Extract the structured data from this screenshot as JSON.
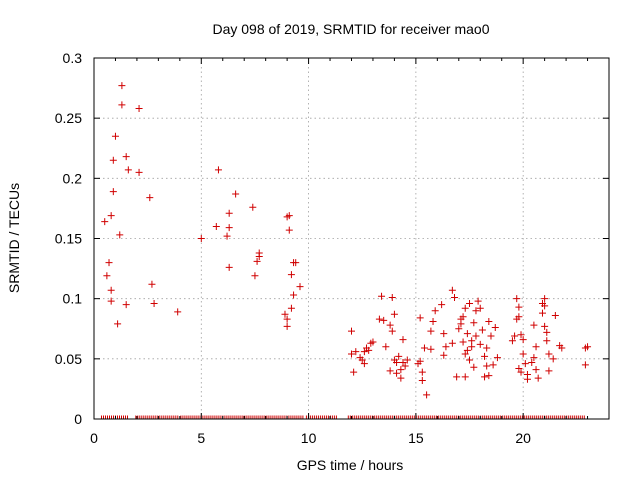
{
  "chart_data": {
    "type": "scatter",
    "title": "Day 098 of 2019, SRMTID for receiver mao0",
    "xlabel": "GPS time / hours",
    "ylabel": "SRMTID / TECUs",
    "xlim": [
      0,
      24.0
    ],
    "ylim": [
      0,
      0.3
    ],
    "xticks": [
      0,
      5,
      10,
      15,
      20
    ],
    "yticks": [
      0,
      0.05,
      0.1,
      0.15,
      0.2,
      0.25,
      0.3
    ],
    "xtick_labels": [
      "0",
      "5",
      "10",
      "15",
      "20"
    ],
    "ytick_labels": [
      "0",
      "0.05",
      "0.1",
      "0.15",
      "0.2",
      "0.25",
      "0.3"
    ],
    "grid": true,
    "marker": "+",
    "color": "#d00000",
    "series": [
      {
        "name": "SRMTID",
        "points": [
          [
            0.5,
            0.164
          ],
          [
            0.6,
            0.119
          ],
          [
            0.7,
            0.13
          ],
          [
            0.8,
            0.107
          ],
          [
            0.8,
            0.098
          ],
          [
            0.8,
            0.169
          ],
          [
            0.9,
            0.215
          ],
          [
            0.9,
            0.189
          ],
          [
            1.0,
            0.235
          ],
          [
            1.1,
            0.079
          ],
          [
            1.2,
            0.153
          ],
          [
            1.3,
            0.277
          ],
          [
            1.3,
            0.261
          ],
          [
            1.5,
            0.218
          ],
          [
            1.5,
            0.095
          ],
          [
            1.6,
            0.207
          ],
          [
            2.1,
            0.258
          ],
          [
            2.1,
            0.205
          ],
          [
            2.6,
            0.184
          ],
          [
            2.7,
            0.112
          ],
          [
            2.8,
            0.096
          ],
          [
            3.9,
            0.089
          ],
          [
            5.0,
            0.15
          ],
          [
            5.7,
            0.16
          ],
          [
            5.8,
            0.207
          ],
          [
            6.2,
            0.152
          ],
          [
            6.3,
            0.171
          ],
          [
            6.3,
            0.159
          ],
          [
            6.3,
            0.126
          ],
          [
            6.6,
            0.187
          ],
          [
            7.4,
            0.176
          ],
          [
            7.5,
            0.119
          ],
          [
            7.6,
            0.131
          ],
          [
            7.7,
            0.138
          ],
          [
            7.7,
            0.135
          ],
          [
            8.9,
            0.087
          ],
          [
            9.0,
            0.077
          ],
          [
            9.0,
            0.168
          ],
          [
            9.0,
            0.083
          ],
          [
            9.1,
            0.169
          ],
          [
            9.1,
            0.157
          ],
          [
            9.2,
            0.12
          ],
          [
            9.2,
            0.092
          ],
          [
            9.3,
            0.103
          ],
          [
            9.3,
            0.13
          ],
          [
            9.4,
            0.13
          ],
          [
            9.6,
            0.11
          ],
          [
            12.0,
            0.073
          ],
          [
            12.0,
            0.054
          ],
          [
            12.1,
            0.039
          ],
          [
            12.2,
            0.056
          ],
          [
            12.4,
            0.051
          ],
          [
            12.5,
            0.049
          ],
          [
            12.6,
            0.046
          ],
          [
            12.6,
            0.056
          ],
          [
            12.7,
            0.059
          ],
          [
            12.8,
            0.057
          ],
          [
            12.9,
            0.063
          ],
          [
            13.0,
            0.064
          ],
          [
            13.3,
            0.083
          ],
          [
            13.4,
            0.102
          ],
          [
            13.5,
            0.082
          ],
          [
            13.6,
            0.06
          ],
          [
            13.8,
            0.04
          ],
          [
            13.8,
            0.078
          ],
          [
            13.9,
            0.073
          ],
          [
            13.9,
            0.101
          ],
          [
            14.0,
            0.049
          ],
          [
            14.0,
            0.087
          ],
          [
            14.1,
            0.038
          ],
          [
            14.1,
            0.047
          ],
          [
            14.2,
            0.052
          ],
          [
            14.3,
            0.041
          ],
          [
            14.3,
            0.034
          ],
          [
            14.4,
            0.047
          ],
          [
            14.4,
            0.066
          ],
          [
            14.5,
            0.044
          ],
          [
            14.6,
            0.049
          ],
          [
            15.1,
            0.046
          ],
          [
            15.2,
            0.048
          ],
          [
            15.2,
            0.084
          ],
          [
            15.3,
            0.039
          ],
          [
            15.3,
            0.032
          ],
          [
            15.4,
            0.059
          ],
          [
            15.5,
            0.02
          ],
          [
            15.7,
            0.073
          ],
          [
            15.7,
            0.058
          ],
          [
            15.8,
            0.081
          ],
          [
            15.9,
            0.09
          ],
          [
            16.2,
            0.095
          ],
          [
            16.3,
            0.071
          ],
          [
            16.3,
            0.053
          ],
          [
            16.4,
            0.06
          ],
          [
            16.7,
            0.107
          ],
          [
            16.7,
            0.063
          ],
          [
            16.8,
            0.101
          ],
          [
            16.9,
            0.035
          ],
          [
            17.0,
            0.075
          ],
          [
            17.1,
            0.083
          ],
          [
            17.1,
            0.079
          ],
          [
            17.2,
            0.085
          ],
          [
            17.2,
            0.064
          ],
          [
            17.3,
            0.035
          ],
          [
            17.3,
            0.092
          ],
          [
            17.3,
            0.054
          ],
          [
            17.4,
            0.071
          ],
          [
            17.4,
            0.057
          ],
          [
            17.5,
            0.049
          ],
          [
            17.5,
            0.096
          ],
          [
            17.6,
            0.065
          ],
          [
            17.6,
            0.06
          ],
          [
            17.7,
            0.043
          ],
          [
            17.7,
            0.08
          ],
          [
            17.8,
            0.069
          ],
          [
            17.8,
            0.09
          ],
          [
            17.9,
            0.098
          ],
          [
            18.0,
            0.062
          ],
          [
            18.0,
            0.092
          ],
          [
            18.1,
            0.074
          ],
          [
            18.2,
            0.052
          ],
          [
            18.2,
            0.035
          ],
          [
            18.3,
            0.059
          ],
          [
            18.3,
            0.044
          ],
          [
            18.4,
            0.081
          ],
          [
            18.4,
            0.036
          ],
          [
            18.5,
            0.069
          ],
          [
            18.6,
            0.045
          ],
          [
            18.7,
            0.076
          ],
          [
            18.8,
            0.051
          ],
          [
            19.5,
            0.065
          ],
          [
            19.6,
            0.069
          ],
          [
            19.7,
            0.083
          ],
          [
            19.7,
            0.1
          ],
          [
            19.8,
            0.042
          ],
          [
            19.8,
            0.093
          ],
          [
            19.8,
            0.085
          ],
          [
            19.9,
            0.039
          ],
          [
            19.9,
            0.07
          ],
          [
            20.0,
            0.066
          ],
          [
            20.0,
            0.054
          ],
          [
            20.1,
            0.046
          ],
          [
            20.2,
            0.033
          ],
          [
            20.2,
            0.037
          ],
          [
            20.4,
            0.047
          ],
          [
            20.5,
            0.078
          ],
          [
            20.5,
            0.051
          ],
          [
            20.6,
            0.041
          ],
          [
            20.6,
            0.06
          ],
          [
            20.7,
            0.034
          ],
          [
            20.9,
            0.096
          ],
          [
            20.9,
            0.088
          ],
          [
            21.0,
            0.094
          ],
          [
            21.0,
            0.1
          ],
          [
            21.0,
            0.077
          ],
          [
            21.1,
            0.072
          ],
          [
            21.1,
            0.065
          ],
          [
            21.2,
            0.054
          ],
          [
            21.2,
            0.04
          ],
          [
            21.4,
            0.05
          ],
          [
            21.5,
            0.086
          ],
          [
            21.7,
            0.061
          ],
          [
            21.8,
            0.059
          ],
          [
            22.9,
            0.045
          ],
          [
            22.9,
            0.059
          ],
          [
            23.0,
            0.06
          ]
        ]
      }
    ],
    "zero_rug": {
      "value": 0,
      "segments": [
        [
          0.35,
          1.6
        ],
        [
          1.95,
          3.95
        ],
        [
          4.05,
          9.75
        ],
        [
          9.9,
          11.35
        ],
        [
          11.85,
          22.9
        ]
      ]
    }
  }
}
